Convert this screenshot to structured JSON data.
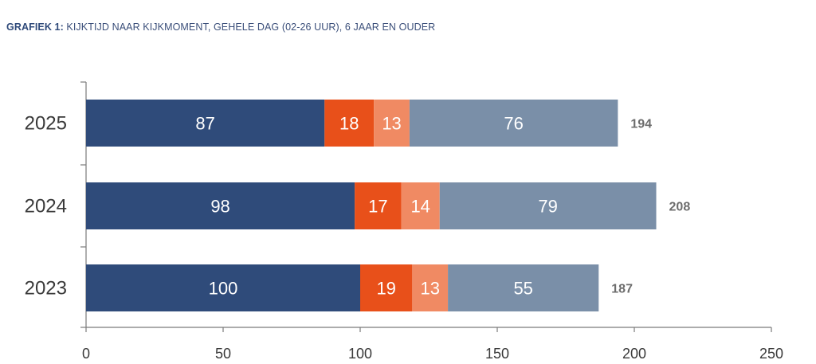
{
  "chart_data": {
    "type": "bar",
    "orientation": "horizontal",
    "stacked": true,
    "title_prefix": "GRAFIEK 1:",
    "title": "KIJKTIJD NAAR KIJKMOMENT, GEHELE DAG (02-26 UUR), 6 JAAR EN OUDER",
    "categories": [
      "2025",
      "2024",
      "2023"
    ],
    "series": [
      {
        "name": "segment 1",
        "color": "#2f4b7a",
        "values": [
          87,
          98,
          100
        ]
      },
      {
        "name": "segment 2",
        "color": "#e8501a",
        "values": [
          18,
          17,
          19
        ]
      },
      {
        "name": "segment 3",
        "color": "#f08a63",
        "values": [
          13,
          14,
          13
        ]
      },
      {
        "name": "segment 4",
        "color": "#7a8fa8",
        "values": [
          76,
          79,
          55
        ]
      }
    ],
    "totals": [
      194,
      208,
      187
    ],
    "xlim": [
      0,
      250
    ],
    "xticks": [
      0,
      50,
      100,
      150,
      200,
      250
    ],
    "grid": false,
    "legend": "none"
  }
}
